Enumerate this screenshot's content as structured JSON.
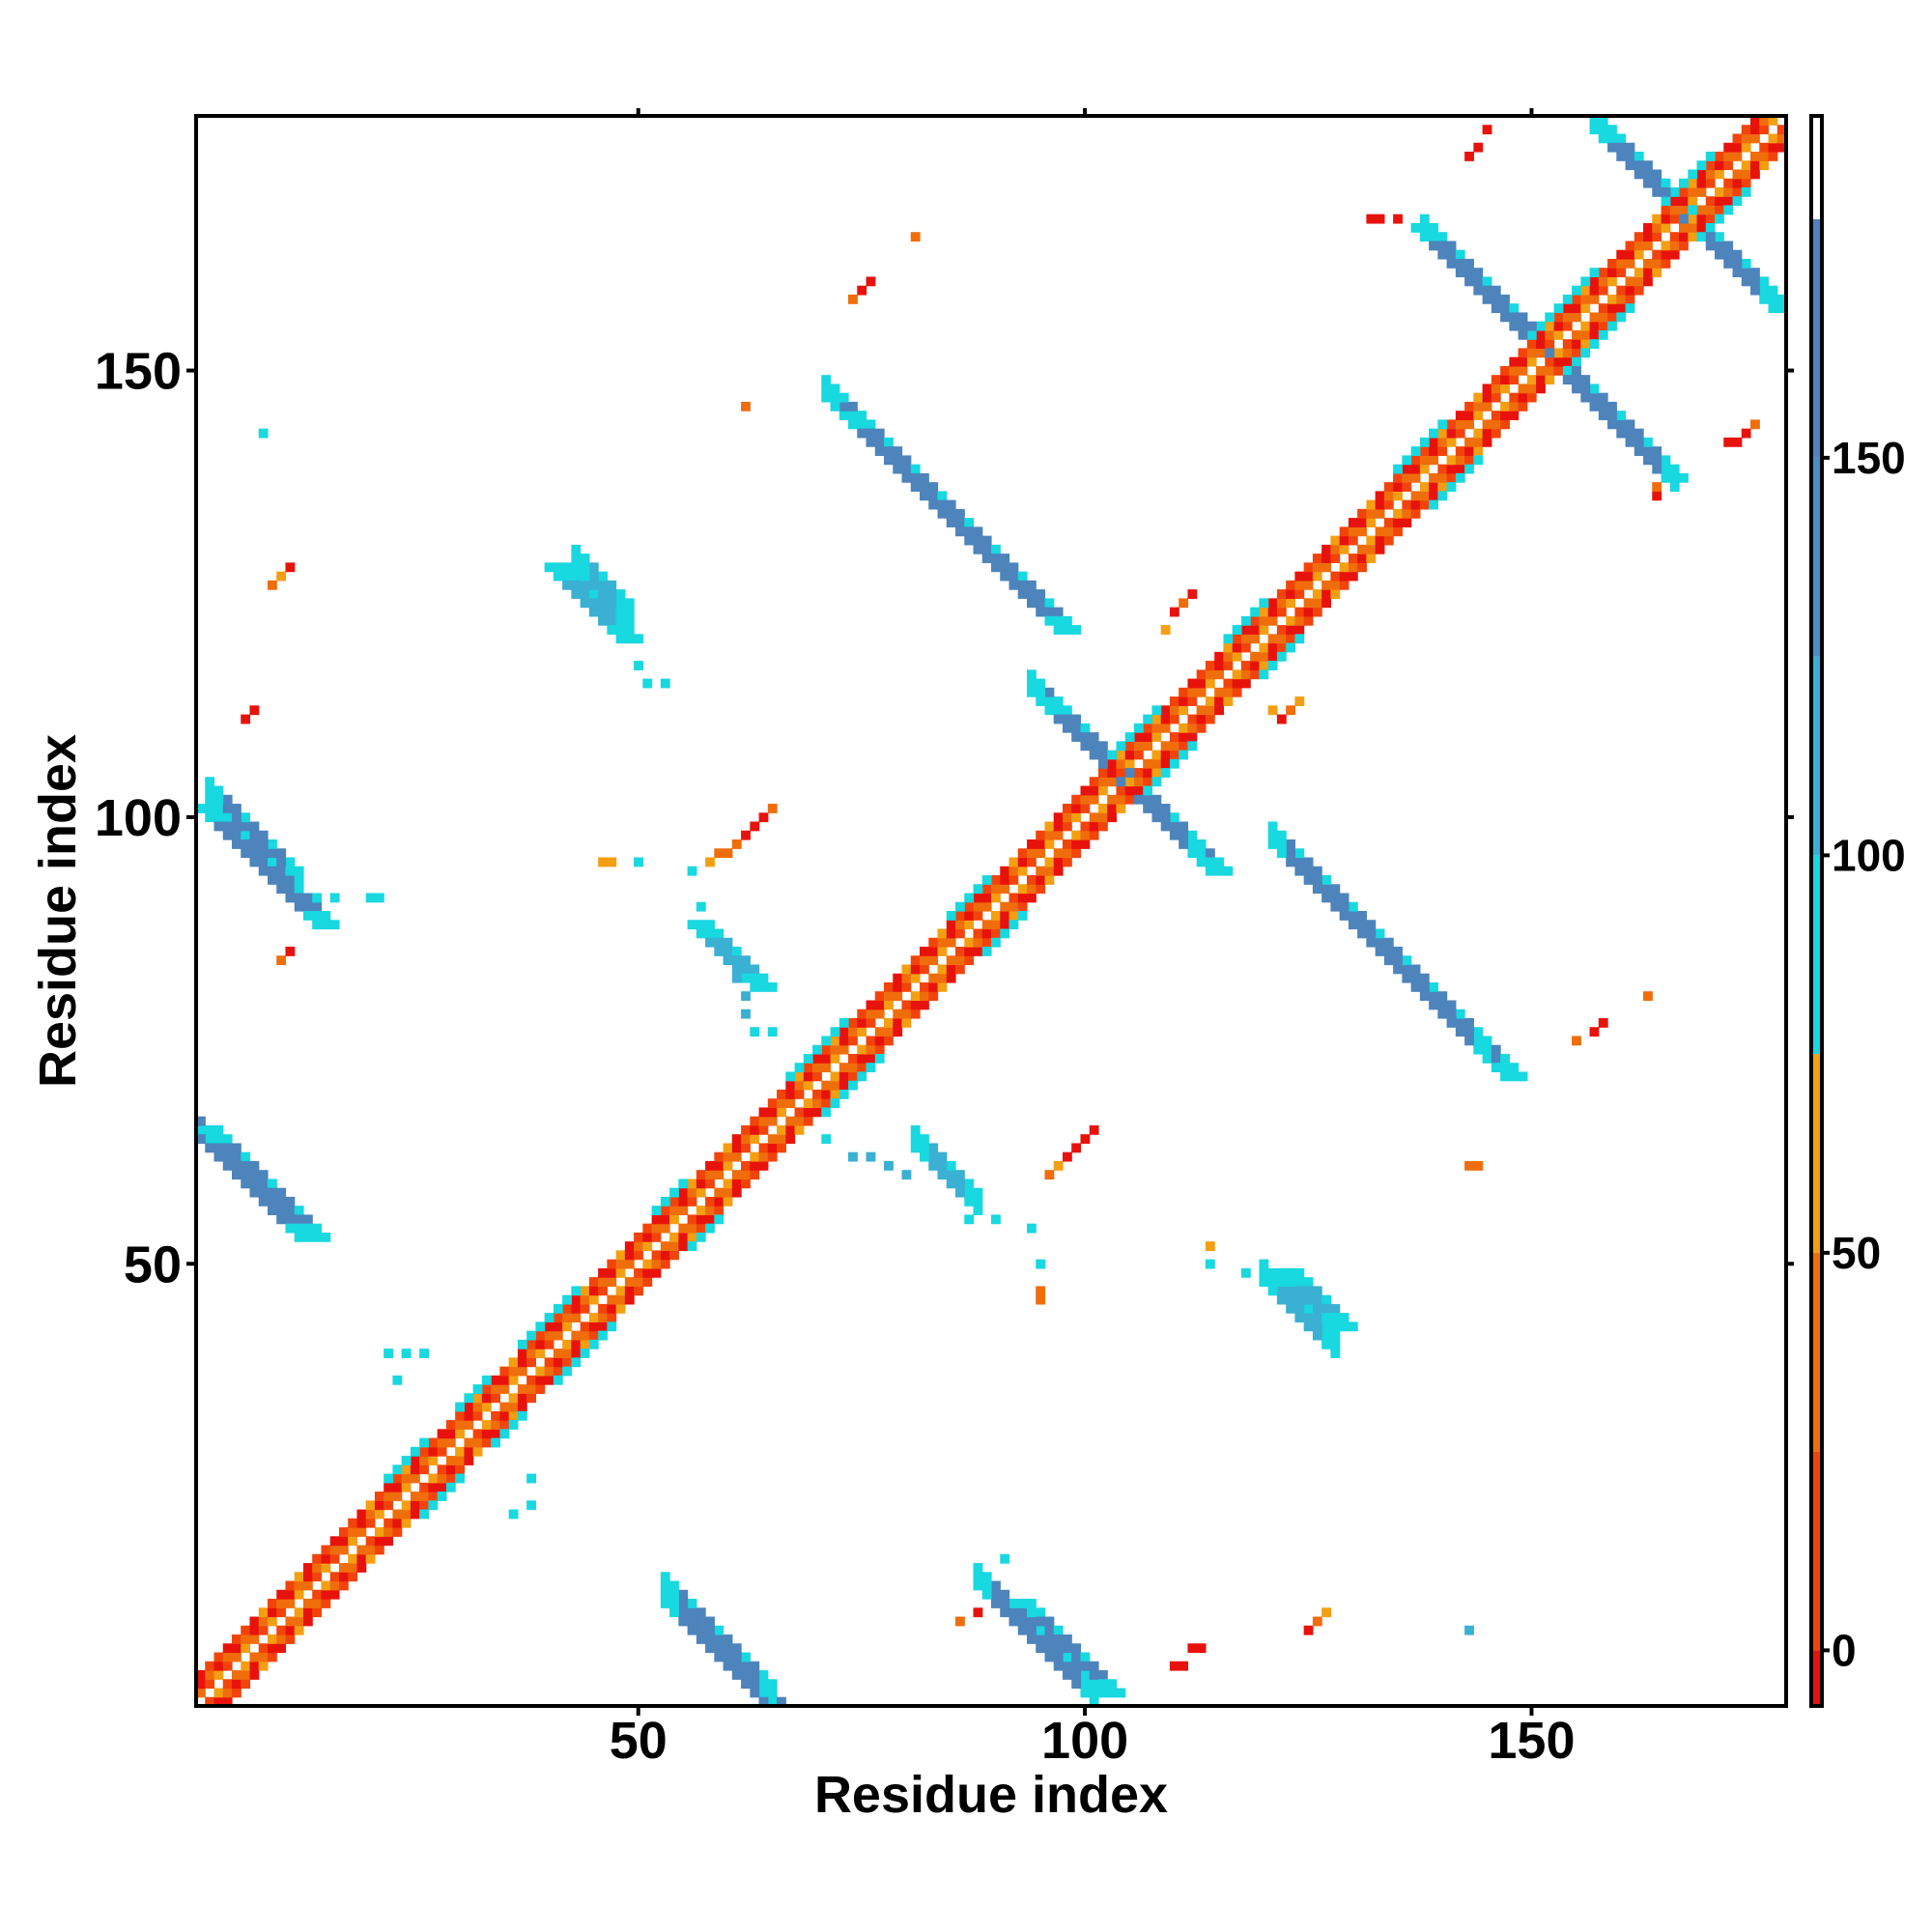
{
  "chart_data": {
    "type": "heatmap",
    "title": "",
    "xlabel": "Residue index",
    "ylabel": "Residue index",
    "xlim": [
      1,
      178
    ],
    "ylim": [
      1,
      178
    ],
    "x_ticks": [
      50,
      100,
      150
    ],
    "y_ticks": [
      50,
      100,
      150
    ],
    "grid": false,
    "legend": "right colorbar",
    "colorbar": {
      "ticks": [
        0,
        50,
        100,
        150
      ],
      "range": [
        -7,
        193
      ],
      "bins": [
        {
          "from": -7,
          "to": 0,
          "color": "#e8120c"
        },
        {
          "from": 0,
          "to": 25,
          "color": "#f2440a"
        },
        {
          "from": 25,
          "to": 50,
          "color": "#f06d0c"
        },
        {
          "from": 50,
          "to": 75,
          "color": "#f49f12"
        },
        {
          "from": 75,
          "to": 100,
          "color": "#18d8e0"
        },
        {
          "from": 100,
          "to": 125,
          "color": "#3ab0d2"
        },
        {
          "from": 125,
          "to": 150,
          "color": "#4a8fc4"
        },
        {
          "from": 150,
          "to": 180,
          "color": "#4d84bb"
        },
        {
          "from": 180,
          "to": 193,
          "color": "#ffffff"
        }
      ]
    },
    "diagonal_band": {
      "start": 1,
      "end": 178
    },
    "antiparallel_strands": [
      {
        "anchor": [
          1,
          101
        ],
        "length": 14,
        "color": "#4d84bb",
        "edge_color": "#18d8e0"
      },
      {
        "anchor": [
          1,
          65
        ],
        "length": 13,
        "color": "#4d84bb",
        "edge_color": "#18d8e0"
      },
      {
        "anchor": [
          40,
          128
        ],
        "length": 9,
        "color": "#3ab0d2",
        "edge_color": "#18d8e0"
      },
      {
        "anchor": [
          53,
          12
        ],
        "length": 15,
        "color": "#4d84bb",
        "edge_color": "#18d8e0"
      },
      {
        "anchor": [
          73,
          145
        ],
        "length": 25,
        "color": "#4d84bb",
        "edge_color": "#18d8e0"
      },
      {
        "anchor": [
          92,
          12
        ],
        "length": 11,
        "color": "#4d84bb",
        "edge_color": "#18d8e0"
      },
      {
        "anchor": [
          95,
          113
        ],
        "length": 20,
        "color": "#4d84bb",
        "edge_color": "#18d8e0"
      },
      {
        "anchor": [
          121,
          97
        ],
        "length": 27,
        "color": "#4d84bb",
        "edge_color": "#18d8e0"
      },
      {
        "anchor": [
          137,
          166
        ],
        "length": 29,
        "color": "#4d84bb",
        "edge_color": "#18d8e0"
      },
      {
        "anchor": [
          157,
          177
        ],
        "length": 21,
        "color": "#4d84bb",
        "edge_color": "#18d8e0"
      },
      {
        "anchor": [
          122,
          49
        ],
        "length": 7,
        "color": "#3ab0d2",
        "edge_color": "#18d8e0"
      },
      {
        "anchor": [
          56,
          88
        ],
        "length": 8,
        "color": "#3ab0d2",
        "edge_color": "#18d8e0"
      }
    ],
    "sparse_contacts": [
      {
        "x": 8,
        "y": 143,
        "color": "#18d8e0"
      },
      {
        "x": 9,
        "y": 126,
        "color": "#f06d0c"
      },
      {
        "x": 10,
        "y": 127,
        "color": "#f49f12"
      },
      {
        "x": 11,
        "y": 128,
        "color": "#e8120c"
      },
      {
        "x": 6,
        "y": 111,
        "color": "#e8120c"
      },
      {
        "x": 7,
        "y": 112,
        "color": "#e8120c"
      },
      {
        "x": 10,
        "y": 84,
        "color": "#f06d0c"
      },
      {
        "x": 11,
        "y": 85,
        "color": "#e8120c"
      },
      {
        "x": 14,
        "y": 91,
        "color": "#18d8e0"
      },
      {
        "x": 16,
        "y": 91,
        "color": "#18d8e0"
      },
      {
        "x": 20,
        "y": 91,
        "color": "#18d8e0"
      },
      {
        "x": 21,
        "y": 91,
        "color": "#18d8e0"
      },
      {
        "x": 50,
        "y": 117,
        "color": "#18d8e0"
      },
      {
        "x": 51,
        "y": 115,
        "color": "#18d8e0"
      },
      {
        "x": 53,
        "y": 115,
        "color": "#18d8e0"
      },
      {
        "x": 46,
        "y": 95,
        "color": "#f49f12"
      },
      {
        "x": 47,
        "y": 95,
        "color": "#f49f12"
      },
      {
        "x": 50,
        "y": 95,
        "color": "#18d8e0"
      },
      {
        "x": 58,
        "y": 95,
        "color": "#f49f12"
      },
      {
        "x": 59,
        "y": 96,
        "color": "#f06d0c"
      },
      {
        "x": 60,
        "y": 96,
        "color": "#f06d0c"
      },
      {
        "x": 61,
        "y": 97,
        "color": "#f06d0c"
      },
      {
        "x": 62,
        "y": 98,
        "color": "#e8120c"
      },
      {
        "x": 63,
        "y": 99,
        "color": "#e8120c"
      },
      {
        "x": 64,
        "y": 100,
        "color": "#e8120c"
      },
      {
        "x": 65,
        "y": 101,
        "color": "#f06d0c"
      },
      {
        "x": 56,
        "y": 94,
        "color": "#18d8e0"
      },
      {
        "x": 57,
        "y": 90,
        "color": "#18d8e0"
      },
      {
        "x": 61,
        "y": 82,
        "color": "#3ab0d2"
      },
      {
        "x": 62,
        "y": 80,
        "color": "#3ab0d2"
      },
      {
        "x": 62,
        "y": 78,
        "color": "#3ab0d2"
      },
      {
        "x": 63,
        "y": 76,
        "color": "#18d8e0"
      },
      {
        "x": 65,
        "y": 76,
        "color": "#18d8e0"
      },
      {
        "x": 62,
        "y": 146,
        "color": "#f06d0c"
      },
      {
        "x": 74,
        "y": 158,
        "color": "#f06d0c"
      },
      {
        "x": 75,
        "y": 159,
        "color": "#e8120c"
      },
      {
        "x": 76,
        "y": 160,
        "color": "#e8120c"
      },
      {
        "x": 81,
        "y": 165,
        "color": "#f06d0c"
      },
      {
        "x": 71,
        "y": 64,
        "color": "#18d8e0"
      },
      {
        "x": 74,
        "y": 62,
        "color": "#3ab0d2"
      },
      {
        "x": 76,
        "y": 62,
        "color": "#3ab0d2"
      },
      {
        "x": 78,
        "y": 61,
        "color": "#3ab0d2"
      },
      {
        "x": 80,
        "y": 60,
        "color": "#3ab0d2"
      },
      {
        "x": 87,
        "y": 55,
        "color": "#18d8e0"
      },
      {
        "x": 90,
        "y": 55,
        "color": "#18d8e0"
      },
      {
        "x": 94,
        "y": 54,
        "color": "#18d8e0"
      },
      {
        "x": 95,
        "y": 50,
        "color": "#18d8e0"
      },
      {
        "x": 95,
        "y": 47,
        "color": "#f06d0c"
      },
      {
        "x": 95,
        "y": 46,
        "color": "#f06d0c"
      },
      {
        "x": 96,
        "y": 60,
        "color": "#f06d0c"
      },
      {
        "x": 97,
        "y": 61,
        "color": "#f49f12"
      },
      {
        "x": 98,
        "y": 62,
        "color": "#e8120c"
      },
      {
        "x": 99,
        "y": 63,
        "color": "#e8120c"
      },
      {
        "x": 100,
        "y": 64,
        "color": "#e8120c"
      },
      {
        "x": 101,
        "y": 65,
        "color": "#e8120c"
      },
      {
        "x": 114,
        "y": 52,
        "color": "#f49f12"
      },
      {
        "x": 114,
        "y": 50,
        "color": "#18d8e0"
      },
      {
        "x": 118,
        "y": 49,
        "color": "#18d8e0"
      },
      {
        "x": 143,
        "y": 61,
        "color": "#f06d0c"
      },
      {
        "x": 144,
        "y": 61,
        "color": "#f06d0c"
      },
      {
        "x": 86,
        "y": 10,
        "color": "#f06d0c"
      },
      {
        "x": 88,
        "y": 11,
        "color": "#e8120c"
      },
      {
        "x": 110,
        "y": 5,
        "color": "#e8120c"
      },
      {
        "x": 111,
        "y": 5,
        "color": "#e8120c"
      },
      {
        "x": 112,
        "y": 7,
        "color": "#e8120c"
      },
      {
        "x": 113,
        "y": 7,
        "color": "#e8120c"
      },
      {
        "x": 125,
        "y": 9,
        "color": "#e8120c"
      },
      {
        "x": 126,
        "y": 10,
        "color": "#f06d0c"
      },
      {
        "x": 127,
        "y": 11,
        "color": "#f49f12"
      },
      {
        "x": 143,
        "y": 9,
        "color": "#3ab0d2"
      },
      {
        "x": 155,
        "y": 75,
        "color": "#f06d0c"
      },
      {
        "x": 157,
        "y": 76,
        "color": "#e8120c"
      },
      {
        "x": 158,
        "y": 77,
        "color": "#e8120c"
      },
      {
        "x": 163,
        "y": 80,
        "color": "#f06d0c"
      },
      {
        "x": 164,
        "y": 136,
        "color": "#e8120c"
      },
      {
        "x": 164,
        "y": 137,
        "color": "#f06d0c"
      },
      {
        "x": 172,
        "y": 142,
        "color": "#e8120c"
      },
      {
        "x": 173,
        "y": 142,
        "color": "#e8120c"
      },
      {
        "x": 174,
        "y": 143,
        "color": "#e8120c"
      },
      {
        "x": 175,
        "y": 144,
        "color": "#f06d0c"
      },
      {
        "x": 143,
        "y": 174,
        "color": "#e8120c"
      },
      {
        "x": 144,
        "y": 175,
        "color": "#e8120c"
      },
      {
        "x": 145,
        "y": 177,
        "color": "#e8120c"
      },
      {
        "x": 132,
        "y": 167,
        "color": "#e8120c"
      },
      {
        "x": 133,
        "y": 167,
        "color": "#e8120c"
      },
      {
        "x": 135,
        "y": 167,
        "color": "#e8120c"
      },
      {
        "x": 110,
        "y": 123,
        "color": "#e8120c"
      },
      {
        "x": 111,
        "y": 124,
        "color": "#f06d0c"
      },
      {
        "x": 112,
        "y": 125,
        "color": "#e8120c"
      },
      {
        "x": 109,
        "y": 121,
        "color": "#f49f12"
      },
      {
        "x": 121,
        "y": 112,
        "color": "#f49f12"
      },
      {
        "x": 122,
        "y": 111,
        "color": "#e8120c"
      },
      {
        "x": 123,
        "y": 112,
        "color": "#f06d0c"
      },
      {
        "x": 124,
        "y": 113,
        "color": "#f49f12"
      },
      {
        "x": 38,
        "y": 26,
        "color": "#18d8e0"
      },
      {
        "x": 38,
        "y": 23,
        "color": "#18d8e0"
      },
      {
        "x": 36,
        "y": 22,
        "color": "#18d8e0"
      },
      {
        "x": 22,
        "y": 40,
        "color": "#18d8e0"
      },
      {
        "x": 24,
        "y": 40,
        "color": "#18d8e0"
      },
      {
        "x": 26,
        "y": 40,
        "color": "#18d8e0"
      },
      {
        "x": 23,
        "y": 37,
        "color": "#18d8e0"
      },
      {
        "x": 91,
        "y": 17,
        "color": "#18d8e0"
      }
    ]
  }
}
